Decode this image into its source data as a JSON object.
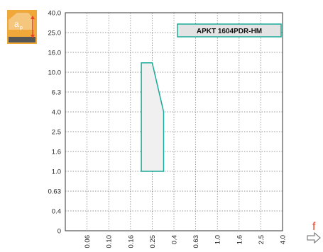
{
  "chart_data": {
    "type": "area",
    "title": "",
    "legend": "APKT 1604PDR-HM",
    "legend_placement": "top-right",
    "y_symbol": "a",
    "y_symbol_sub": "p",
    "x_symbol": "f",
    "y_ticks": [
      "0",
      "0.4",
      "0.63",
      "1.0",
      "1.6",
      "2.5",
      "4.0",
      "6.3",
      "10.0",
      "16.0",
      "25.0",
      "40.0"
    ],
    "x_ticks": [
      "0.06",
      "0.10",
      "0.16",
      "0.25",
      "0.4",
      "0.63",
      "1.0",
      "1.6",
      "2.5",
      "4.0"
    ],
    "grid": true,
    "series": [
      {
        "x": [
          "0.2",
          "0.25",
          "0.32",
          "0.32",
          "0.2"
        ],
        "y": [
          "12.5",
          "12.5",
          "4.0",
          "1.0",
          "1.0"
        ]
      }
    ],
    "colors": {
      "region_stroke": "#1aaa9a",
      "region_fill": "#f0f0f0",
      "legend_stroke": "#1aaa9a",
      "legend_fill": "#e3e3e3",
      "icon_bg": "#f0a83a",
      "axis_symbol": "#e8442a"
    }
  }
}
